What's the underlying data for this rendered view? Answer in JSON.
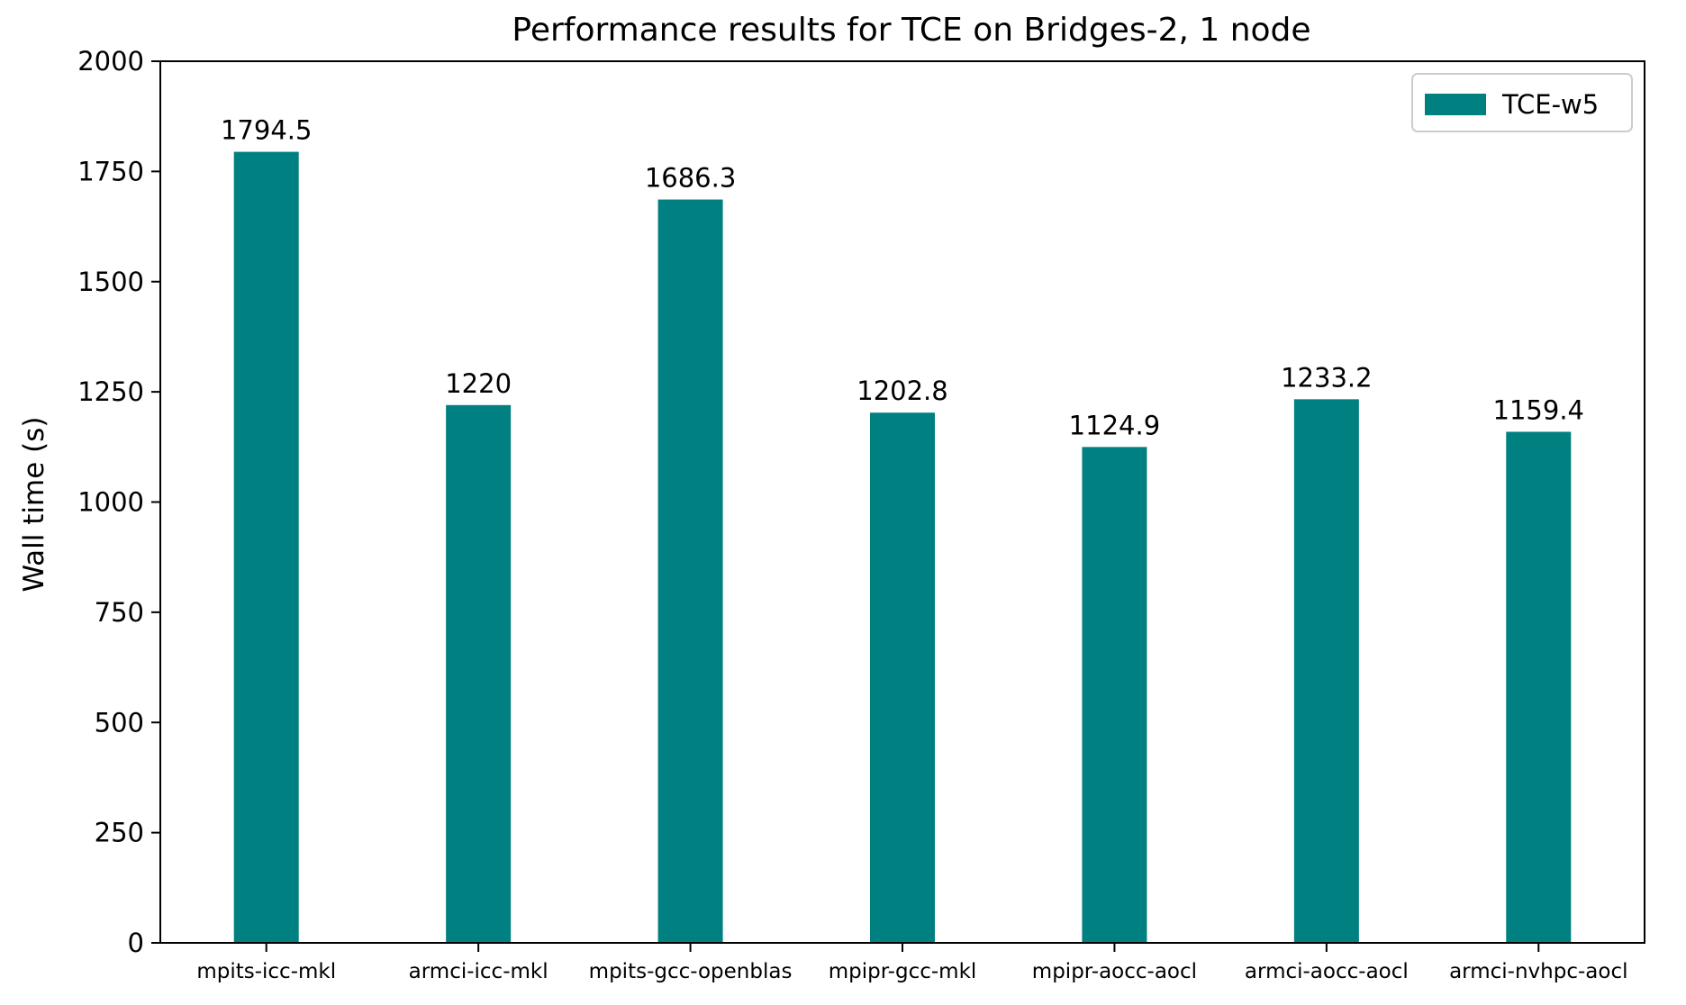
{
  "chart_data": {
    "type": "bar",
    "title": "Performance results for TCE on Bridges-2, 1 node",
    "xlabel": "",
    "ylabel": "Wall time (s)",
    "ylim": [
      0,
      2000
    ],
    "yticks": [
      0,
      250,
      500,
      750,
      1000,
      1250,
      1500,
      1750,
      2000
    ],
    "ytick_labels": [
      "0",
      "250",
      "500",
      "750",
      "1000",
      "1250",
      "1500",
      "1750",
      "2000"
    ],
    "categories": [
      "mpits-icc-mkl",
      "armci-icc-mkl",
      "mpits-gcc-openblas",
      "mpipr-gcc-mkl",
      "mpipr-aocc-aocl",
      "armci-aocc-aocl",
      "armci-nvhpc-aocl"
    ],
    "series": [
      {
        "name": "TCE-w5",
        "color": "#008080",
        "values": [
          1794.5,
          1220,
          1686.3,
          1202.8,
          1124.9,
          1233.2,
          1159.4
        ],
        "value_labels": [
          "1794.5",
          "1220",
          "1686.3",
          "1202.8",
          "1124.9",
          "1233.2",
          "1159.4"
        ]
      }
    ],
    "legend": {
      "position": "top-right",
      "entries": [
        "TCE-w5"
      ]
    },
    "grid": false
  }
}
